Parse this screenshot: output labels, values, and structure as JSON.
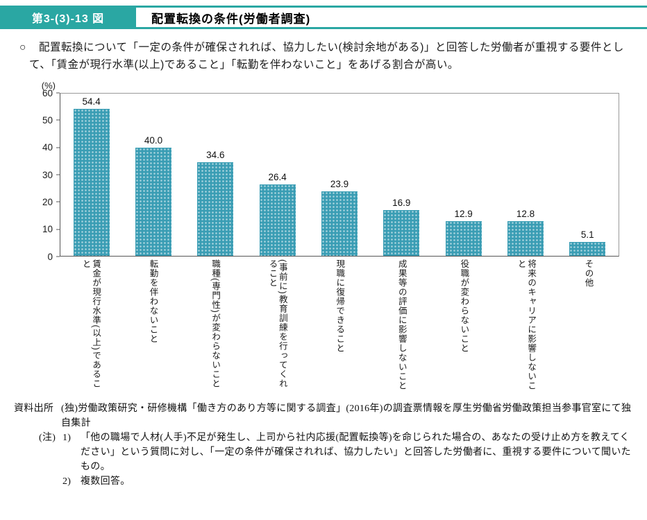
{
  "header": {
    "figure_label": "第3-(3)-13 図",
    "title": "配置転換の条件(労働者調査)"
  },
  "summary": {
    "bullet": "○",
    "text": "配置転換について「一定の条件が確保されれば、協力したい(検討余地がある)」と回答した労働者が重視する要件として、「賃金が現行水準(以上)であること」「転勤を伴わないこと」をあげる割合が高い。"
  },
  "chart_data": {
    "type": "bar",
    "title": "配置転換の条件(労働者調査)",
    "unit_label": "(%)",
    "categories": [
      "賃金が現行水準(以上)であること",
      "転勤を伴わないこと",
      "職種(専門性)が変わらないこと",
      "(事前に)教育訓練を行ってくれること",
      "現職に復帰できること",
      "成果等の評価に影響しないこと",
      "役職が変わらないこと",
      "将来のキャリアに影響しないこと",
      "その他"
    ],
    "values": [
      54.4,
      40.0,
      34.6,
      26.4,
      23.9,
      16.9,
      12.9,
      12.8,
      5.1
    ],
    "ylim": [
      0,
      60
    ],
    "yticks": [
      0,
      10,
      20,
      30,
      40,
      50,
      60
    ],
    "bar_color": "#3a9db4",
    "grid": false,
    "legend": false
  },
  "notes": {
    "source_label": "資料出所",
    "source_text": "(独)労働政策研究・研修機構「働き方のあり方等に関する調査」(2016年)の調査票情報を厚生労働省労働政策担当参事官室にて独自集計",
    "note_label": "(注)",
    "note1_num": "1)",
    "note1_text": "「他の職場で人材(人手)不足が発生し、上司から社内応援(配置転換等)を命じられた場合の、あなたの受け止め方を教えてください」という質問に対し、「一定の条件が確保されれば、協力したい」と回答した労働者に、重視する要件について聞いたもの。",
    "note2_num": "2)",
    "note2_text": "複数回答。"
  }
}
